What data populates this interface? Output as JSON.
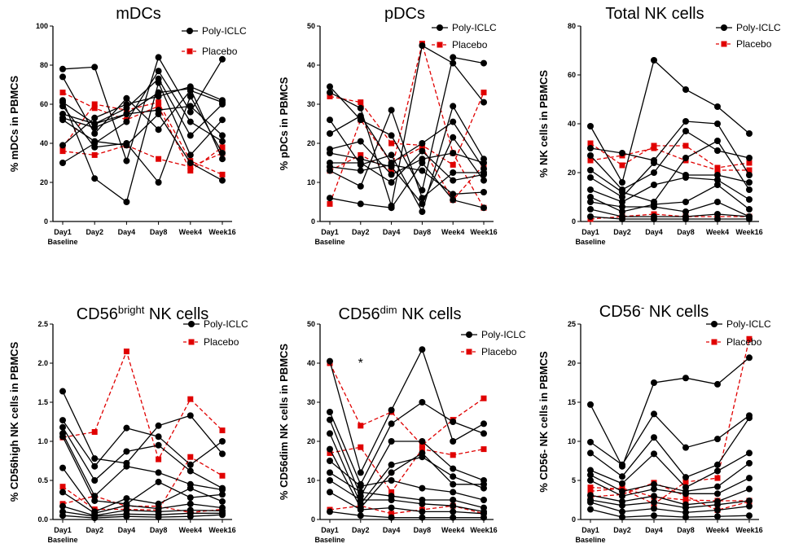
{
  "figure": {
    "x_categories": [
      "Day1",
      "Day2",
      "Day4",
      "Day8",
      "Week4",
      "Week16"
    ],
    "baseline_label": "Baseline",
    "legend": {
      "treatment": "Poly-ICLC",
      "control": "Placebo"
    },
    "colors": {
      "treatment": "#000000",
      "control": "#e00000"
    }
  },
  "chart_data": [
    {
      "type": "line",
      "title": "mDCs",
      "title_sup": "",
      "title_suffix": "",
      "ylabel": "% mDCs in PBMCS",
      "ylim": [
        0,
        100
      ],
      "yticks": [
        "0",
        "20",
        "40",
        "60",
        "80",
        "100"
      ],
      "annotation": "",
      "series": [
        {
          "name": "Poly-ICLC",
          "values": [
            78,
            79,
            31,
            84,
            56,
            83
          ]
        },
        {
          "name": "Poly-ICLC",
          "values": [
            74,
            45,
            63,
            47,
            67,
            61
          ]
        },
        {
          "name": "Poly-ICLC",
          "values": [
            62,
            22,
            10,
            71,
            34,
            52
          ]
        },
        {
          "name": "Poly-ICLC",
          "values": [
            61,
            50,
            55,
            57,
            59,
            44
          ]
        },
        {
          "name": "Poly-ICLC",
          "values": [
            59,
            38,
            40,
            20,
            64,
            35
          ]
        },
        {
          "name": "Poly-ICLC",
          "values": [
            55,
            50,
            58,
            73,
            44,
            60
          ]
        },
        {
          "name": "Poly-ICLC",
          "values": [
            53,
            48,
            55,
            66,
            68,
            32
          ]
        },
        {
          "name": "Poly-ICLC",
          "values": [
            52,
            41,
            39,
            55,
            30,
            21
          ]
        },
        {
          "name": "Poly-ICLC",
          "values": [
            39,
            53,
            60,
            64,
            69,
            62
          ]
        },
        {
          "name": "Poly-ICLC",
          "values": [
            30,
            40,
            51,
            77,
            51,
            41
          ]
        },
        {
          "name": "Placebo",
          "values": [
            66,
            58,
            52,
            59,
            26,
            38
          ]
        },
        {
          "name": "Placebo",
          "values": [
            38,
            60,
            57,
            61,
            31,
            24
          ]
        },
        {
          "name": "Placebo",
          "values": [
            36,
            34,
            39,
            32,
            28,
            35
          ]
        }
      ]
    },
    {
      "type": "line",
      "title": "pDCs",
      "title_sup": "",
      "title_suffix": "",
      "ylabel": "% pDCs in PBMCS",
      "ylim": [
        0,
        50
      ],
      "yticks": [
        "0",
        "10",
        "20",
        "30",
        "40",
        "50"
      ],
      "annotation": "",
      "series": [
        {
          "name": "Poly-ICLC",
          "values": [
            34.5,
            26,
            22,
            8,
            42,
            40.5
          ]
        },
        {
          "name": "Poly-ICLC",
          "values": [
            33,
            29,
            4,
            45,
            40.5,
            30.5
          ]
        },
        {
          "name": "Poly-ICLC",
          "values": [
            26,
            14.5,
            17,
            2.5,
            29.5,
            16
          ]
        },
        {
          "name": "Poly-ICLC",
          "values": [
            22.5,
            27,
            15,
            20,
            25.5,
            13.5
          ]
        },
        {
          "name": "Poly-ICLC",
          "values": [
            18.5,
            20.5,
            12,
            16,
            17.5,
            15
          ]
        },
        {
          "name": "Poly-ICLC",
          "values": [
            17.5,
            16,
            14,
            4.5,
            21.5,
            10.5
          ]
        },
        {
          "name": "Poly-ICLC",
          "values": [
            15,
            15,
            10,
            18,
            10.5,
            12
          ]
        },
        {
          "name": "Poly-ICLC",
          "values": [
            14,
            13,
            14.5,
            13,
            7,
            7.5
          ]
        },
        {
          "name": "Poly-ICLC",
          "values": [
            13,
            9,
            28.5,
            6,
            12.5,
            12.5
          ]
        },
        {
          "name": "Poly-ICLC",
          "values": [
            6,
            4.5,
            3.5,
            15,
            5.5,
            3.5
          ]
        },
        {
          "name": "Placebo",
          "values": [
            32,
            30.5,
            20,
            19.5,
            14.5,
            33
          ]
        },
        {
          "name": "Placebo",
          "values": [
            13,
            17,
            13,
            45.5,
            17.5,
            3.5
          ]
        },
        {
          "name": "Placebo",
          "values": [
            4.5,
            26,
            15,
            19,
            5.5,
            14.5
          ]
        }
      ]
    },
    {
      "type": "line",
      "title": "Total NK cells",
      "title_sup": "",
      "title_suffix": "",
      "ylabel": "% NK cells in PBMCS",
      "ylim": [
        0,
        80
      ],
      "yticks": [
        "0",
        "20",
        "40",
        "60",
        "80"
      ],
      "annotation": "",
      "series": [
        {
          "name": "Poly-ICLC",
          "values": [
            39,
            16,
            66,
            54,
            47,
            36
          ]
        },
        {
          "name": "Poly-ICLC",
          "values": [
            30,
            28,
            25,
            41,
            40,
            19
          ]
        },
        {
          "name": "Poly-ICLC",
          "values": [
            27,
            13,
            20,
            37,
            29,
            26
          ]
        },
        {
          "name": "Poly-ICLC",
          "values": [
            21,
            12,
            8,
            26,
            33,
            13
          ]
        },
        {
          "name": "Poly-ICLC",
          "values": [
            18,
            10,
            24,
            19,
            19,
            16
          ]
        },
        {
          "name": "Poly-ICLC",
          "values": [
            13,
            8,
            15,
            18,
            17,
            9
          ]
        },
        {
          "name": "Poly-ICLC",
          "values": [
            10,
            4,
            7,
            8,
            15,
            5
          ]
        },
        {
          "name": "Poly-ICLC",
          "values": [
            8,
            6,
            6,
            4,
            8,
            2
          ]
        },
        {
          "name": "Poly-ICLC",
          "values": [
            5,
            2,
            2,
            2,
            3,
            2
          ]
        },
        {
          "name": "Poly-ICLC",
          "values": [
            2,
            1,
            1,
            1,
            1,
            1
          ]
        },
        {
          "name": "Placebo",
          "values": [
            32,
            23,
            31,
            31,
            22,
            24
          ]
        },
        {
          "name": "Placebo",
          "values": [
            25,
            27,
            30,
            25,
            21,
            21
          ]
        },
        {
          "name": "Placebo",
          "values": [
            1,
            2,
            3,
            2,
            2,
            2
          ]
        }
      ]
    },
    {
      "type": "line",
      "title": "CD56",
      "title_sup": "bright",
      "title_suffix": " NK cells",
      "ylabel": "% CD56high NK cells in PBMCS",
      "ylim": [
        0,
        2.5
      ],
      "yticks": [
        "0.0",
        "0.5",
        "1.0",
        "1.5",
        "2.0",
        "2.5"
      ],
      "annotation": "",
      "series": [
        {
          "name": "Poly-ICLC",
          "values": [
            1.64,
            0.78,
            0.72,
            1.2,
            1.33,
            0.84
          ]
        },
        {
          "name": "Poly-ICLC",
          "values": [
            1.27,
            0.68,
            1.17,
            1.06,
            0.7,
            1.0
          ]
        },
        {
          "name": "Poly-ICLC",
          "values": [
            1.18,
            0.5,
            0.87,
            0.95,
            0.62,
            0.4
          ]
        },
        {
          "name": "Poly-ICLC",
          "values": [
            1.1,
            0.3,
            0.68,
            0.6,
            0.45,
            0.38
          ]
        },
        {
          "name": "Poly-ICLC",
          "values": [
            1.06,
            0.24,
            0.2,
            0.48,
            0.28,
            0.32
          ]
        },
        {
          "name": "Poly-ICLC",
          "values": [
            0.66,
            0.1,
            0.27,
            0.2,
            0.4,
            0.23
          ]
        },
        {
          "name": "Poly-ICLC",
          "values": [
            0.35,
            0.08,
            0.18,
            0.14,
            0.2,
            0.15
          ]
        },
        {
          "name": "Poly-ICLC",
          "values": [
            0.17,
            0.05,
            0.12,
            0.1,
            0.12,
            0.11
          ]
        },
        {
          "name": "Poly-ICLC",
          "values": [
            0.1,
            0.04,
            0.07,
            0.06,
            0.08,
            0.08
          ]
        },
        {
          "name": "Poly-ICLC",
          "values": [
            0.05,
            0.02,
            0.04,
            0.03,
            0.04,
            0.06
          ]
        },
        {
          "name": "Placebo",
          "values": [
            1.05,
            1.12,
            2.15,
            0.77,
            1.54,
            1.14
          ]
        },
        {
          "name": "Placebo",
          "values": [
            0.42,
            0.13,
            0.13,
            0.12,
            0.8,
            0.56
          ]
        },
        {
          "name": "Placebo",
          "values": [
            0.2,
            0.3,
            0.17,
            0.17,
            0.09,
            0.13
          ]
        }
      ]
    },
    {
      "type": "line",
      "title": "CD56",
      "title_sup": "dim",
      "title_suffix": " NK cells",
      "ylabel": "% CD56dim NK cells in PBMCS",
      "ylim": [
        0,
        50
      ],
      "yticks": [
        "0",
        "10",
        "20",
        "30",
        "40",
        "50"
      ],
      "annotation": "*",
      "series": [
        {
          "name": "Poly-ICLC",
          "values": [
            40.5,
            12,
            28,
            43.5,
            20,
            24.5
          ]
        },
        {
          "name": "Poly-ICLC",
          "values": [
            27.5,
            9,
            24.5,
            30,
            25,
            22
          ]
        },
        {
          "name": "Poly-ICLC",
          "values": [
            25.5,
            6,
            20,
            20,
            13,
            10
          ]
        },
        {
          "name": "Poly-ICLC",
          "values": [
            22,
            4,
            14,
            16,
            11,
            8
          ]
        },
        {
          "name": "Poly-ICLC",
          "values": [
            18,
            3,
            12,
            17,
            9,
            9
          ]
        },
        {
          "name": "Poly-ICLC",
          "values": [
            15,
            8.5,
            10,
            8,
            7,
            5
          ]
        },
        {
          "name": "Poly-ICLC",
          "values": [
            12,
            7,
            6,
            5,
            5,
            3
          ]
        },
        {
          "name": "Poly-ICLC",
          "values": [
            10,
            5,
            5,
            4,
            3.5,
            2
          ]
        },
        {
          "name": "Poly-ICLC",
          "values": [
            7,
            2.5,
            3,
            2,
            2,
            1.5
          ]
        },
        {
          "name": "Poly-ICLC",
          "values": [
            2,
            1,
            0.5,
            0.5,
            0.5,
            0.5
          ]
        },
        {
          "name": "Placebo",
          "values": [
            40,
            24,
            27.5,
            19,
            25.5,
            31
          ]
        },
        {
          "name": "Placebo",
          "values": [
            17,
            18.5,
            7,
            18,
            16.5,
            18
          ]
        },
        {
          "name": "Placebo",
          "values": [
            2.5,
            3.5,
            1.5,
            2.5,
            3.5,
            1.5
          ]
        }
      ]
    },
    {
      "type": "line",
      "title": "CD56",
      "title_sup": "-",
      "title_suffix": " NK cells",
      "ylabel": "% CD56- NK cells in PBMCS",
      "ylim": [
        0,
        25
      ],
      "yticks": [
        "0",
        "5",
        "10",
        "15",
        "20",
        "25"
      ],
      "annotation": "",
      "series": [
        {
          "name": "Poly-ICLC",
          "values": [
            14.7,
            6.8,
            17.5,
            18.1,
            17.3,
            20.7
          ]
        },
        {
          "name": "Poly-ICLC",
          "values": [
            9.9,
            7.0,
            13.5,
            9.2,
            10.3,
            13.3
          ]
        },
        {
          "name": "Poly-ICLC",
          "values": [
            8.5,
            5.5,
            10.5,
            5.4,
            7.0,
            13.0
          ]
        },
        {
          "name": "Poly-ICLC",
          "values": [
            6.3,
            4.6,
            8.4,
            4.1,
            6.2,
            8.5
          ]
        },
        {
          "name": "Poly-ICLC",
          "values": [
            5.7,
            3.6,
            4.5,
            3.6,
            4.2,
            7.2
          ]
        },
        {
          "name": "Poly-ICLC",
          "values": [
            5.0,
            3.0,
            3.9,
            3.3,
            3.3,
            5.3
          ]
        },
        {
          "name": "Poly-ICLC",
          "values": [
            3.1,
            2.3,
            3.0,
            1.9,
            2.3,
            3.9
          ]
        },
        {
          "name": "Poly-ICLC",
          "values": [
            2.5,
            1.8,
            2.2,
            1.5,
            1.9,
            2.4
          ]
        },
        {
          "name": "Poly-ICLC",
          "values": [
            2.2,
            1.0,
            1.4,
            0.9,
            1.2,
            1.7
          ]
        },
        {
          "name": "Poly-ICLC",
          "values": [
            1.3,
            0.3,
            0.5,
            0.3,
            0.4,
            0.5
          ]
        },
        {
          "name": "Placebo",
          "values": [
            4.1,
            3.9,
            2.0,
            4.8,
            5.3,
            23.1
          ]
        },
        {
          "name": "Placebo",
          "values": [
            3.6,
            4.0,
            2.9,
            2.5,
            2.4,
            2.4
          ]
        },
        {
          "name": "Placebo",
          "values": [
            2.9,
            3.2,
            4.7,
            3.0,
            1.2,
            2.3
          ]
        }
      ]
    }
  ]
}
